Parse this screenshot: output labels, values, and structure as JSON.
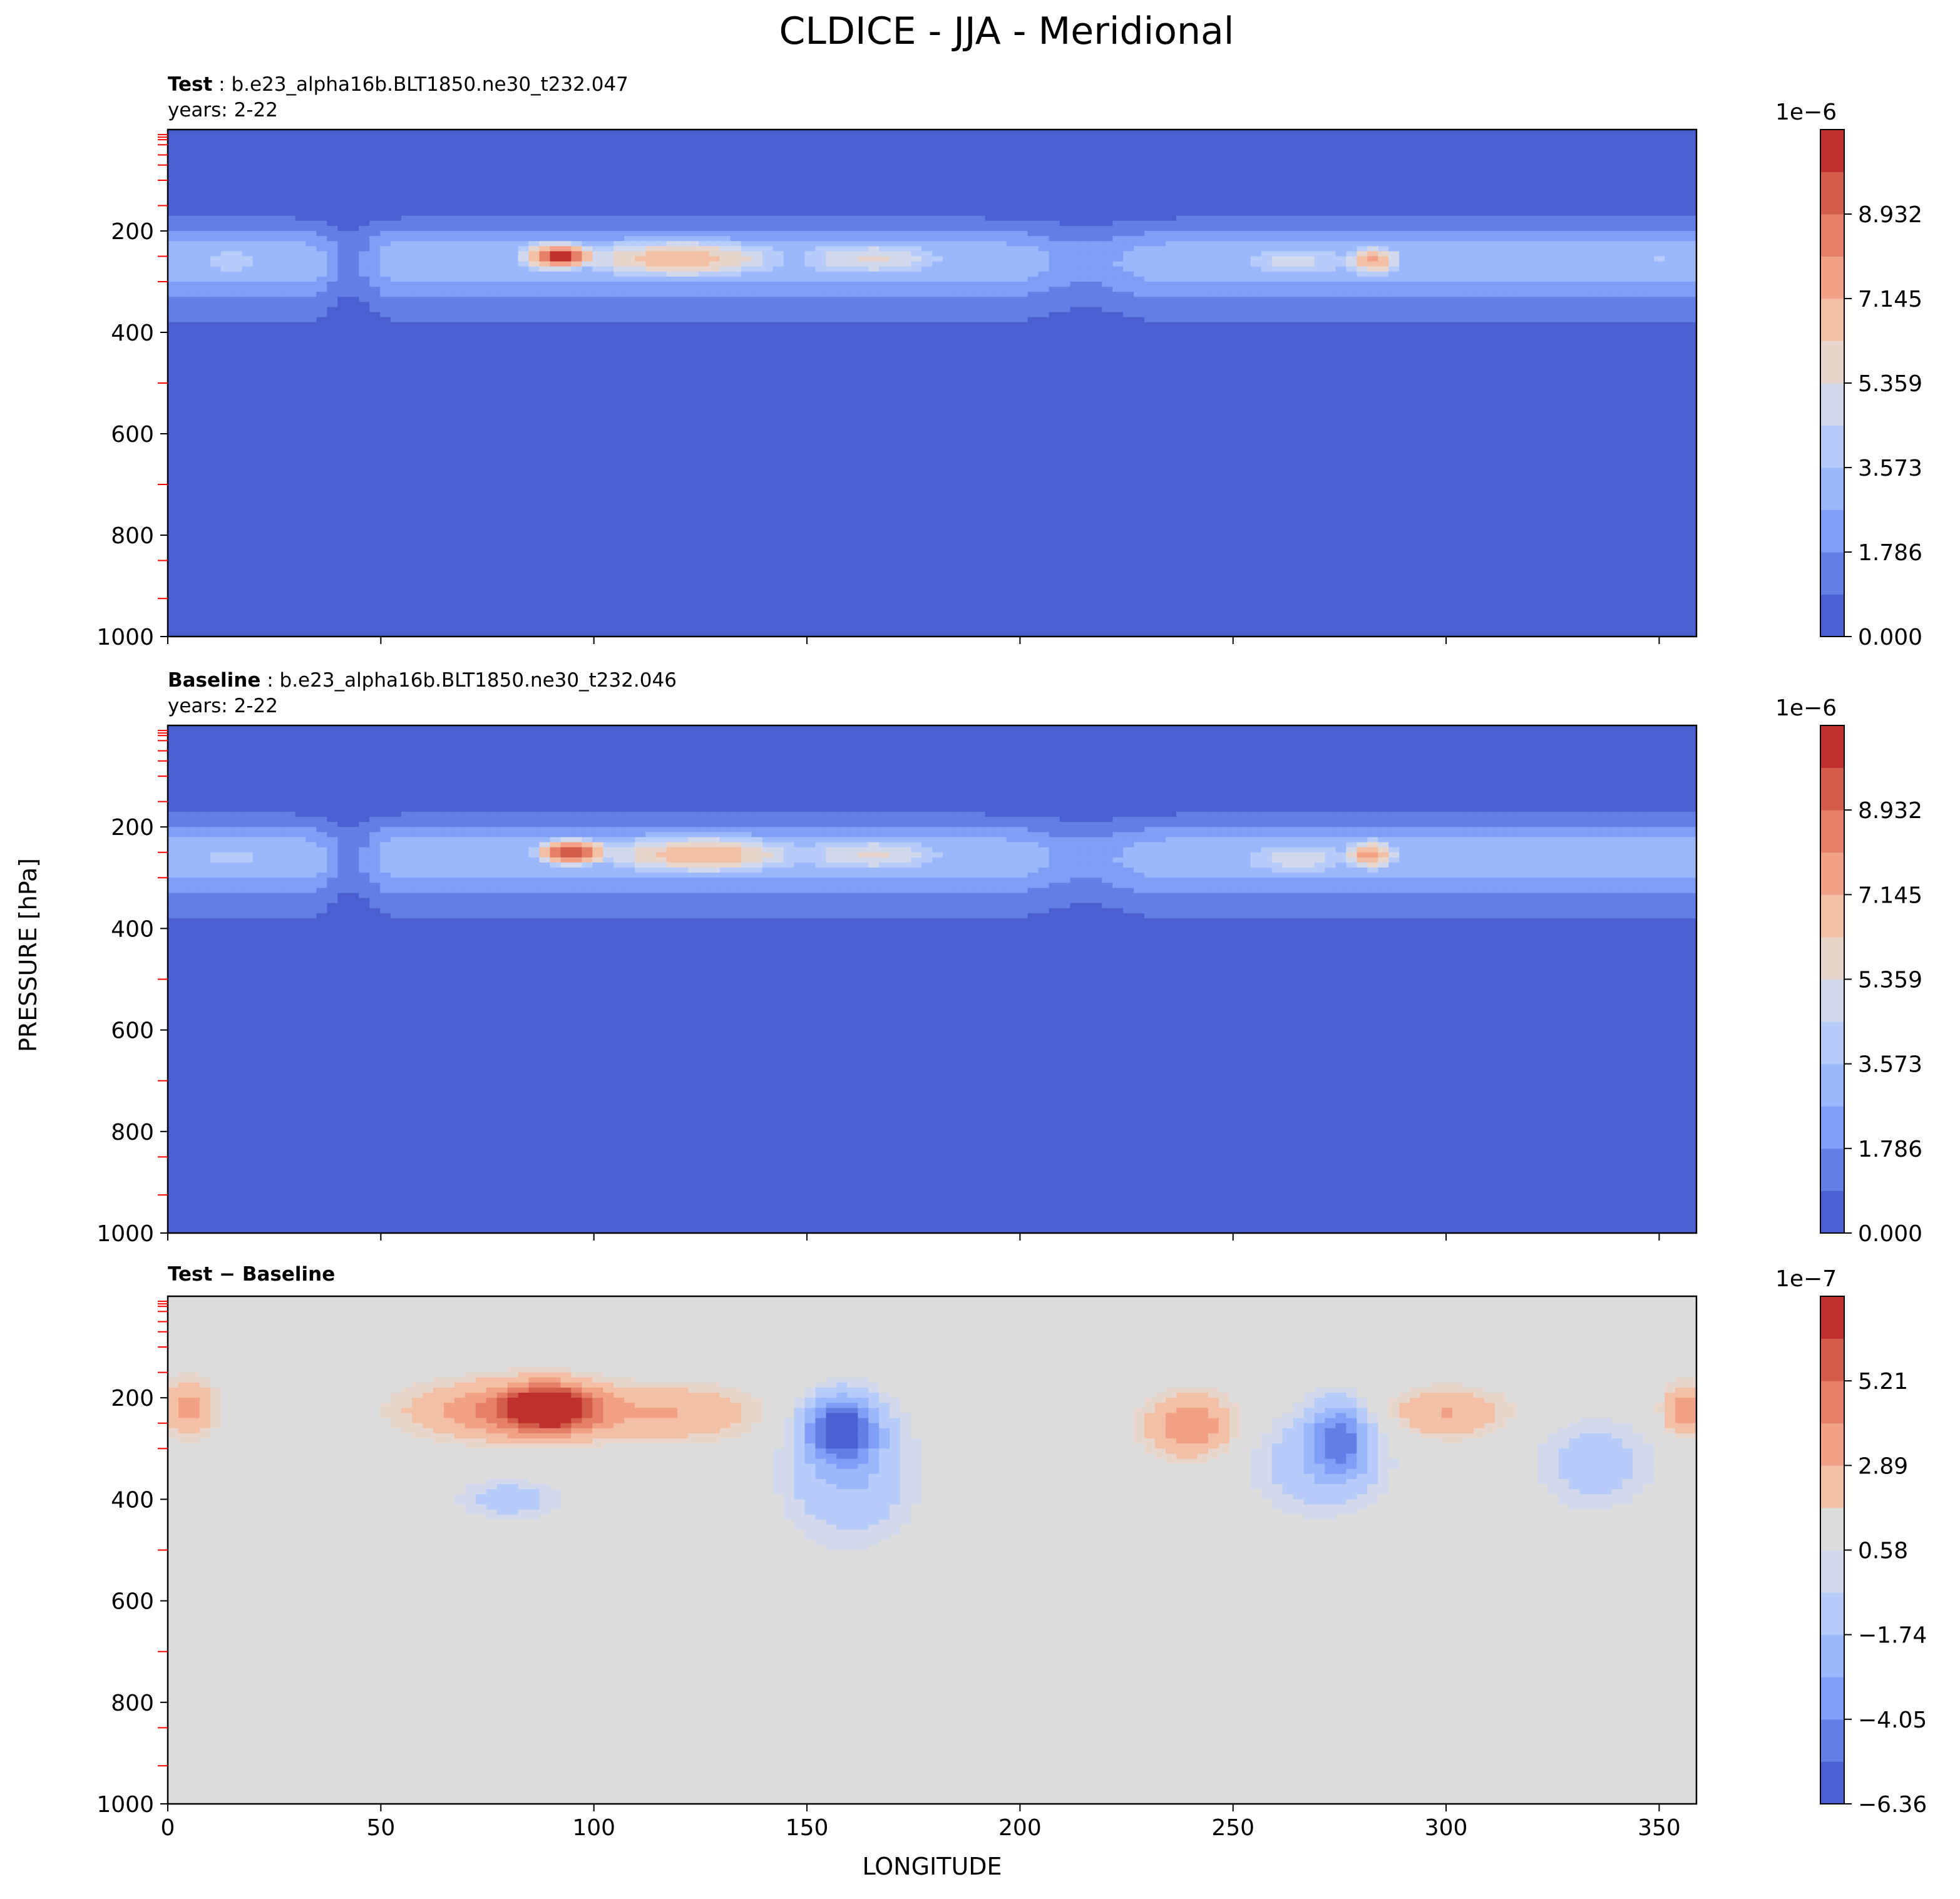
{
  "figure": {
    "title": "CLDICE - JJA - Meridional",
    "ylabel": "PRESSURE [hPa]",
    "xlabel": "LONGITUDE"
  },
  "colors": {
    "coolwarm": [
      "#4a60d2",
      "#627fe6",
      "#7f9ef5",
      "#9bb8fd",
      "#b7ccf9",
      "#d2d9ec",
      "#e8d6cc",
      "#f3c0a5",
      "#f2a186",
      "#e57f67",
      "#d45c4b",
      "#bf2f2e"
    ],
    "neutral": "#dcdcdc",
    "tick_mark_red": "#ff0000"
  },
  "chart_data": [
    {
      "type": "heatmap",
      "panel": "test",
      "label_bold": "Test",
      "label_rest": ": b.e23_alpha16b.BLT1850.ne30_t232.047",
      "years": "years: 2-22",
      "xlim": [
        0,
        358.75
      ],
      "ylim": [
        1000,
        0
      ],
      "xticks": [
        "0",
        "50",
        "100",
        "150",
        "200",
        "250",
        "300",
        "350"
      ],
      "yticks": [
        "200",
        "400",
        "600",
        "800",
        "1000"
      ],
      "colorbar": {
        "exponent": "1e−6",
        "ticks": [
          "0.000",
          "1.786",
          "3.573",
          "5.359",
          "7.145",
          "8.932"
        ],
        "levels": 11,
        "range": [
          0,
          9.825
        ]
      },
      "features": [
        {
          "lon": 92,
          "p": 250,
          "value": 9.5,
          "spread_lon": 10,
          "spread_p": 30
        },
        {
          "lon": 120,
          "p": 255,
          "value": 6.5,
          "spread_lon": 30,
          "spread_p": 45
        },
        {
          "lon": 165,
          "p": 255,
          "value": 5.0,
          "spread_lon": 25,
          "spread_p": 45
        },
        {
          "lon": 283,
          "p": 258,
          "value": 6.8,
          "spread_lon": 8,
          "spread_p": 35
        },
        {
          "lon": 265,
          "p": 260,
          "value": 4.4,
          "spread_lon": 20,
          "spread_p": 45
        },
        {
          "lon": 15,
          "p": 260,
          "value": 3.7,
          "spread_lon": 15,
          "spread_p": 45
        },
        {
          "lon": 350,
          "p": 255,
          "value": 3.3,
          "spread_lon": 12,
          "spread_p": 45
        }
      ]
    },
    {
      "type": "heatmap",
      "panel": "baseline",
      "label_bold": "Baseline",
      "label_rest": ": b.e23_alpha16b.BLT1850.ne30_t232.046",
      "years": "years: 2-22",
      "xlim": [
        0,
        358.75
      ],
      "ylim": [
        1000,
        0
      ],
      "xticks": [
        "0",
        "50",
        "100",
        "150",
        "200",
        "250",
        "300",
        "350"
      ],
      "yticks": [
        "200",
        "400",
        "600",
        "800",
        "1000"
      ],
      "colorbar": {
        "exponent": "1e−6",
        "ticks": [
          "0.000",
          "1.786",
          "3.573",
          "5.359",
          "7.145",
          "8.932"
        ],
        "levels": 11,
        "range": [
          0,
          9.825
        ]
      },
      "features": [
        {
          "lon": 95,
          "p": 250,
          "value": 9.2,
          "spread_lon": 10,
          "spread_p": 30
        },
        {
          "lon": 125,
          "p": 255,
          "value": 6.5,
          "spread_lon": 30,
          "spread_p": 45
        },
        {
          "lon": 165,
          "p": 255,
          "value": 5.0,
          "spread_lon": 25,
          "spread_p": 45
        },
        {
          "lon": 282,
          "p": 255,
          "value": 7.0,
          "spread_lon": 8,
          "spread_p": 35
        },
        {
          "lon": 265,
          "p": 262,
          "value": 4.6,
          "spread_lon": 20,
          "spread_p": 45
        },
        {
          "lon": 15,
          "p": 260,
          "value": 3.6,
          "spread_lon": 15,
          "spread_p": 45
        },
        {
          "lon": 350,
          "p": 258,
          "value": 3.2,
          "spread_lon": 12,
          "spread_p": 45
        }
      ]
    },
    {
      "type": "heatmap",
      "panel": "difference",
      "label_bold": "Test − Baseline",
      "label_rest": "",
      "years": "",
      "xlim": [
        0,
        358.75
      ],
      "ylim": [
        1000,
        0
      ],
      "xticks": [
        "0",
        "50",
        "100",
        "150",
        "200",
        "250",
        "300",
        "350"
      ],
      "yticks": [
        "200",
        "400",
        "600",
        "800",
        "1000"
      ],
      "colorbar": {
        "exponent": "1e−7",
        "ticks": [
          "−6.36",
          "−4.05",
          "−1.74",
          "0.58",
          "2.89",
          "5.21"
        ],
        "levels": 11,
        "range": [
          -6.36,
          6.36
        ]
      },
      "features": [
        {
          "lon": 90,
          "p": 220,
          "value": 5.8,
          "spread_lon": 10,
          "spread_p": 45
        },
        {
          "lon": 80,
          "p": 225,
          "value": 3.5,
          "spread_lon": 22,
          "spread_p": 55
        },
        {
          "lon": 120,
          "p": 230,
          "value": 2.0,
          "spread_lon": 20,
          "spread_p": 55
        },
        {
          "lon": 5,
          "p": 220,
          "value": 2.4,
          "spread_lon": 6,
          "spread_p": 60
        },
        {
          "lon": 240,
          "p": 255,
          "value": 3.2,
          "spread_lon": 10,
          "spread_p": 60
        },
        {
          "lon": 300,
          "p": 230,
          "value": 2.2,
          "spread_lon": 14,
          "spread_p": 50
        },
        {
          "lon": 356,
          "p": 225,
          "value": 3.0,
          "spread_lon": 5,
          "spread_p": 50
        },
        {
          "lon": 158,
          "p": 260,
          "value": -5.8,
          "spread_lon": 8,
          "spread_p": 60
        },
        {
          "lon": 160,
          "p": 350,
          "value": -2.2,
          "spread_lon": 15,
          "spread_p": 130
        },
        {
          "lon": 275,
          "p": 280,
          "value": -4.0,
          "spread_lon": 7,
          "spread_p": 70
        },
        {
          "lon": 270,
          "p": 330,
          "value": -1.8,
          "spread_lon": 16,
          "spread_p": 100
        },
        {
          "lon": 335,
          "p": 330,
          "value": -1.6,
          "spread_lon": 14,
          "spread_p": 90
        },
        {
          "lon": 80,
          "p": 400,
          "value": -1.6,
          "spread_lon": 12,
          "spread_p": 40
        }
      ]
    }
  ]
}
